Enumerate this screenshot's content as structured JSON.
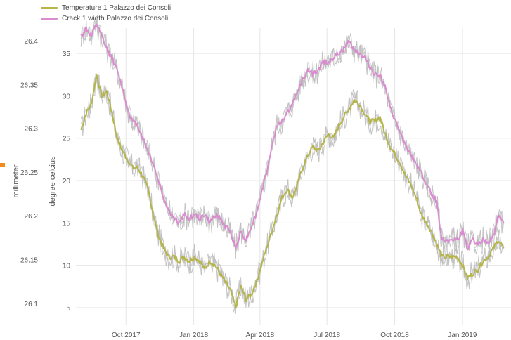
{
  "legend": {
    "series1": "Temperature 1 Palazzo dei Consoli",
    "series2": "Crack 1 width Palazzo dei Consoli"
  },
  "colors": {
    "temperature": "#b5b54a",
    "crack": "#d98ccf",
    "band": "#bdbdbd",
    "grid": "#e6e6e6",
    "marker": "#f28c1d"
  },
  "chart_data": {
    "type": "line",
    "y2_axis": {
      "label": "millimeter",
      "ticks": [
        "26.4",
        "26.35",
        "26.3",
        "26.25",
        "26.2",
        "26.15",
        "26.1"
      ]
    },
    "y_axis": {
      "label": "degree celcius",
      "ticks": [
        35,
        30,
        25,
        20,
        15,
        10,
        5
      ],
      "range": [
        3,
        38
      ]
    },
    "x_axis": {
      "ticks": [
        "Oct 2017",
        "Jan 2018",
        "Apr 2018",
        "Jul 2018",
        "Oct 2018",
        "Jan 2019"
      ]
    },
    "series": [
      {
        "name": "Temperature 1 Palazzo dei Consoli",
        "color": "#b5b54a",
        "points": [
          [
            "2017-08-01",
            26
          ],
          [
            "2017-08-08",
            28
          ],
          [
            "2017-08-15",
            29
          ],
          [
            "2017-08-22",
            32.5
          ],
          [
            "2017-08-29",
            30
          ],
          [
            "2017-09-05",
            30.5
          ],
          [
            "2017-09-12",
            28
          ],
          [
            "2017-09-19",
            25
          ],
          [
            "2017-09-26",
            23.5
          ],
          [
            "2017-10-03",
            22.5
          ],
          [
            "2017-10-10",
            21.5
          ],
          [
            "2017-10-17",
            21.5
          ],
          [
            "2017-10-24",
            20.5
          ],
          [
            "2017-10-31",
            19
          ],
          [
            "2017-11-07",
            16
          ],
          [
            "2017-11-14",
            13.5
          ],
          [
            "2017-11-21",
            12
          ],
          [
            "2017-11-28",
            11
          ],
          [
            "2017-12-05",
            11
          ],
          [
            "2017-12-12",
            10.5
          ],
          [
            "2017-12-19",
            11
          ],
          [
            "2017-12-26",
            10.5
          ],
          [
            "2018-01-02",
            11
          ],
          [
            "2018-01-09",
            10.5
          ],
          [
            "2018-01-16",
            9.5
          ],
          [
            "2018-01-23",
            10.5
          ],
          [
            "2018-01-30",
            10
          ],
          [
            "2018-02-06",
            9
          ],
          [
            "2018-02-13",
            8
          ],
          [
            "2018-02-20",
            7
          ],
          [
            "2018-02-27",
            5
          ],
          [
            "2018-03-06",
            7.5
          ],
          [
            "2018-03-13",
            6
          ],
          [
            "2018-03-20",
            6.5
          ],
          [
            "2018-03-27",
            8
          ],
          [
            "2018-04-03",
            10
          ],
          [
            "2018-04-10",
            12
          ],
          [
            "2018-04-17",
            14
          ],
          [
            "2018-04-24",
            16
          ],
          [
            "2018-05-01",
            18
          ],
          [
            "2018-05-08",
            19
          ],
          [
            "2018-05-15",
            18
          ],
          [
            "2018-05-22",
            19.5
          ],
          [
            "2018-05-29",
            21.5
          ],
          [
            "2018-06-05",
            23
          ],
          [
            "2018-06-12",
            24
          ],
          [
            "2018-06-19",
            23.5
          ],
          [
            "2018-06-26",
            24.5
          ],
          [
            "2018-07-03",
            25.5
          ],
          [
            "2018-07-10",
            25
          ],
          [
            "2018-07-17",
            26.5
          ],
          [
            "2018-07-24",
            27.5
          ],
          [
            "2018-07-31",
            28.5
          ],
          [
            "2018-08-07",
            29.5
          ],
          [
            "2018-08-14",
            29
          ],
          [
            "2018-08-21",
            28
          ],
          [
            "2018-08-28",
            27
          ],
          [
            "2018-09-04",
            27
          ],
          [
            "2018-09-11",
            27.5
          ],
          [
            "2018-09-18",
            25.5
          ],
          [
            "2018-09-25",
            24
          ],
          [
            "2018-10-02",
            23
          ],
          [
            "2018-10-09",
            22
          ],
          [
            "2018-10-16",
            20.5
          ],
          [
            "2018-10-23",
            19.5
          ],
          [
            "2018-10-30",
            18
          ],
          [
            "2018-11-06",
            16
          ],
          [
            "2018-11-13",
            15
          ],
          [
            "2018-11-20",
            14
          ],
          [
            "2018-11-27",
            12.5
          ],
          [
            "2018-12-04",
            11
          ],
          [
            "2018-12-11",
            11
          ],
          [
            "2018-12-18",
            11
          ],
          [
            "2018-12-25",
            11
          ],
          [
            "2019-01-01",
            10
          ],
          [
            "2019-01-08",
            8.5
          ],
          [
            "2019-01-15",
            9
          ],
          [
            "2019-01-22",
            9.5
          ],
          [
            "2019-01-29",
            10.5
          ],
          [
            "2019-02-05",
            11
          ],
          [
            "2019-02-12",
            12
          ],
          [
            "2019-02-19",
            13
          ],
          [
            "2019-02-26",
            12
          ]
        ]
      },
      {
        "name": "Crack 1 width Palazzo dei Consoli",
        "color": "#d98ccf",
        "points": [
          [
            "2017-08-01",
            37
          ],
          [
            "2017-08-08",
            38
          ],
          [
            "2017-08-15",
            37
          ],
          [
            "2017-08-22",
            38.5
          ],
          [
            "2017-08-29",
            37
          ],
          [
            "2017-09-05",
            35.5
          ],
          [
            "2017-09-12",
            34.5
          ],
          [
            "2017-09-19",
            33
          ],
          [
            "2017-09-26",
            31
          ],
          [
            "2017-10-03",
            28.5
          ],
          [
            "2017-10-10",
            27
          ],
          [
            "2017-10-17",
            26.5
          ],
          [
            "2017-10-24",
            25
          ],
          [
            "2017-10-31",
            23.5
          ],
          [
            "2017-11-07",
            22
          ],
          [
            "2017-11-14",
            20
          ],
          [
            "2017-11-21",
            18
          ],
          [
            "2017-11-28",
            16.5
          ],
          [
            "2017-12-05",
            15.5
          ],
          [
            "2017-12-12",
            15
          ],
          [
            "2017-12-19",
            16
          ],
          [
            "2017-12-26",
            15.5
          ],
          [
            "2018-01-02",
            16
          ],
          [
            "2018-01-09",
            15.5
          ],
          [
            "2018-01-16",
            16
          ],
          [
            "2018-01-23",
            15
          ],
          [
            "2018-01-30",
            16
          ],
          [
            "2018-02-06",
            15.5
          ],
          [
            "2018-02-13",
            14.5
          ],
          [
            "2018-02-20",
            14
          ],
          [
            "2018-02-27",
            12
          ],
          [
            "2018-03-06",
            14
          ],
          [
            "2018-03-13",
            13
          ],
          [
            "2018-03-20",
            14.5
          ],
          [
            "2018-03-27",
            16
          ],
          [
            "2018-04-03",
            18.5
          ],
          [
            "2018-04-10",
            21
          ],
          [
            "2018-04-17",
            24
          ],
          [
            "2018-04-24",
            26.5
          ],
          [
            "2018-05-01",
            27
          ],
          [
            "2018-05-08",
            28
          ],
          [
            "2018-05-15",
            29
          ],
          [
            "2018-05-22",
            30.5
          ],
          [
            "2018-05-29",
            32
          ],
          [
            "2018-06-05",
            33
          ],
          [
            "2018-06-12",
            32.5
          ],
          [
            "2018-06-19",
            33
          ],
          [
            "2018-06-26",
            34
          ],
          [
            "2018-07-03",
            34
          ],
          [
            "2018-07-10",
            34.5
          ],
          [
            "2018-07-17",
            35
          ],
          [
            "2018-07-24",
            35.5
          ],
          [
            "2018-07-31",
            36.5
          ],
          [
            "2018-08-07",
            35.5
          ],
          [
            "2018-08-14",
            35
          ],
          [
            "2018-08-21",
            34.5
          ],
          [
            "2018-08-28",
            33.5
          ],
          [
            "2018-09-04",
            32.5
          ],
          [
            "2018-09-11",
            32.5
          ],
          [
            "2018-09-18",
            31
          ],
          [
            "2018-09-25",
            28.5
          ],
          [
            "2018-10-02",
            27
          ],
          [
            "2018-10-09",
            25.5
          ],
          [
            "2018-10-16",
            24
          ],
          [
            "2018-10-23",
            23
          ],
          [
            "2018-10-30",
            22
          ],
          [
            "2018-11-06",
            21
          ],
          [
            "2018-11-13",
            19.5
          ],
          [
            "2018-11-20",
            18.5
          ],
          [
            "2018-11-27",
            17.5
          ],
          [
            "2018-12-04",
            13
          ],
          [
            "2018-12-11",
            13
          ],
          [
            "2018-12-18",
            13
          ],
          [
            "2018-12-25",
            13
          ],
          [
            "2019-01-01",
            14
          ],
          [
            "2019-01-08",
            12
          ],
          [
            "2019-01-15",
            13
          ],
          [
            "2019-01-22",
            12.5
          ],
          [
            "2019-01-29",
            13
          ],
          [
            "2019-02-05",
            12.5
          ],
          [
            "2019-02-12",
            13.5
          ],
          [
            "2019-02-19",
            16
          ],
          [
            "2019-02-26",
            15
          ]
        ]
      }
    ]
  }
}
